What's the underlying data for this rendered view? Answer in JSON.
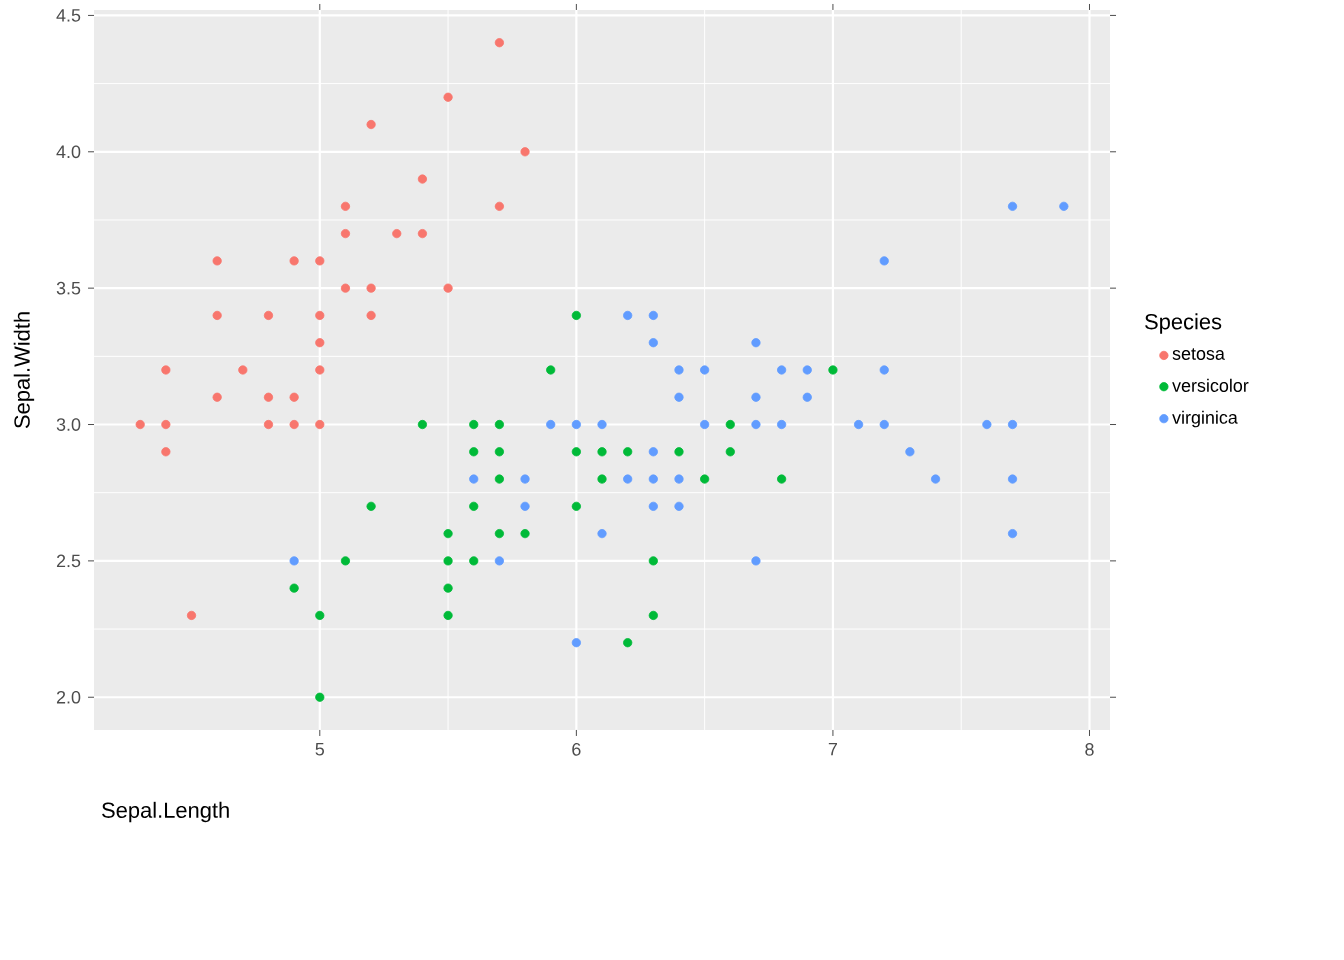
{
  "chart_data": {
    "type": "scatter",
    "xlabel": "Sepal.Length",
    "ylabel": "Sepal.Width",
    "legend_title": "Species",
    "series": [
      {
        "name": "setosa",
        "color": "#F8766D",
        "x": [
          5.1,
          4.9,
          4.7,
          4.6,
          5.0,
          5.4,
          4.6,
          5.0,
          4.4,
          4.9,
          5.4,
          4.8,
          4.8,
          4.3,
          5.8,
          5.7,
          5.7,
          5.1,
          5.1,
          5.0,
          5.2,
          5.2,
          5.2,
          5.5,
          5.0,
          5.5,
          4.9,
          4.4,
          4.5,
          4.4,
          4.6,
          5.3,
          5.0,
          4.8
        ],
        "values": [
          3.5,
          3.0,
          3.2,
          3.1,
          3.6,
          3.9,
          3.4,
          3.4,
          2.9,
          3.1,
          3.7,
          3.4,
          3.0,
          3.0,
          4.0,
          4.4,
          3.8,
          3.8,
          3.7,
          3.0,
          3.5,
          3.4,
          4.1,
          4.2,
          3.2,
          3.5,
          3.6,
          3.0,
          2.3,
          3.2,
          3.6,
          3.7,
          3.3,
          3.1
        ]
      },
      {
        "name": "versicolor",
        "color": "#00BA38",
        "x": [
          7.0,
          5.5,
          6.5,
          5.7,
          4.9,
          6.6,
          5.2,
          5.0,
          6.1,
          5.6,
          5.6,
          6.2,
          5.6,
          5.9,
          6.1,
          6.3,
          6.4,
          6.6,
          6.8,
          6.0,
          5.7,
          5.5,
          6.0,
          5.4,
          6.0,
          6.3,
          5.5,
          5.5,
          5.8,
          5.0,
          5.6,
          5.7,
          5.7,
          6.2,
          5.1
        ],
        "values": [
          3.2,
          2.3,
          2.8,
          2.8,
          2.4,
          2.9,
          2.7,
          2.0,
          2.9,
          2.9,
          3.0,
          2.2,
          2.5,
          3.2,
          2.8,
          2.5,
          2.9,
          3.0,
          2.8,
          2.9,
          2.6,
          2.4,
          2.7,
          3.0,
          3.4,
          2.3,
          2.5,
          2.6,
          2.6,
          2.3,
          2.7,
          3.0,
          2.9,
          2.9,
          2.5
        ]
      },
      {
        "name": "virginica",
        "color": "#619CFF",
        "x": [
          6.3,
          5.8,
          7.1,
          6.3,
          6.5,
          7.6,
          4.9,
          7.3,
          6.7,
          7.2,
          6.5,
          6.4,
          6.8,
          5.7,
          5.8,
          6.4,
          7.7,
          7.7,
          6.0,
          6.9,
          5.6,
          7.7,
          6.3,
          6.7,
          7.2,
          6.2,
          6.1,
          6.4,
          7.2,
          7.4,
          7.9,
          6.3,
          6.1,
          7.7,
          6.3,
          6.4,
          6.0,
          6.9,
          6.7,
          6.8,
          6.7,
          6.2,
          5.9
        ],
        "values": [
          3.3,
          2.7,
          3.0,
          2.9,
          3.0,
          3.0,
          2.5,
          2.9,
          2.5,
          3.6,
          3.2,
          2.7,
          3.0,
          2.5,
          2.8,
          3.2,
          3.8,
          2.6,
          2.2,
          3.2,
          2.8,
          2.8,
          2.7,
          3.3,
          3.2,
          2.8,
          3.0,
          2.8,
          3.0,
          2.8,
          3.8,
          2.8,
          2.6,
          3.0,
          3.4,
          3.1,
          3.0,
          3.1,
          3.1,
          3.2,
          3.0,
          3.4,
          3.0
        ]
      }
    ],
    "xlim": [
      4.12,
      8.08
    ],
    "ylim": [
      1.88,
      4.52
    ],
    "xticks": [
      5,
      6,
      7,
      8
    ],
    "yticks": [
      {
        "value": 2,
        "label": "2.0"
      },
      {
        "value": 2.5,
        "label": "2.5"
      },
      {
        "value": 3,
        "label": "3.0"
      },
      {
        "value": 3.5,
        "label": "3.5"
      },
      {
        "value": 4,
        "label": "4.0"
      },
      {
        "value": 4.5,
        "label": "4.5"
      }
    ],
    "grid": true,
    "legend": "right",
    "marker": "circle"
  }
}
